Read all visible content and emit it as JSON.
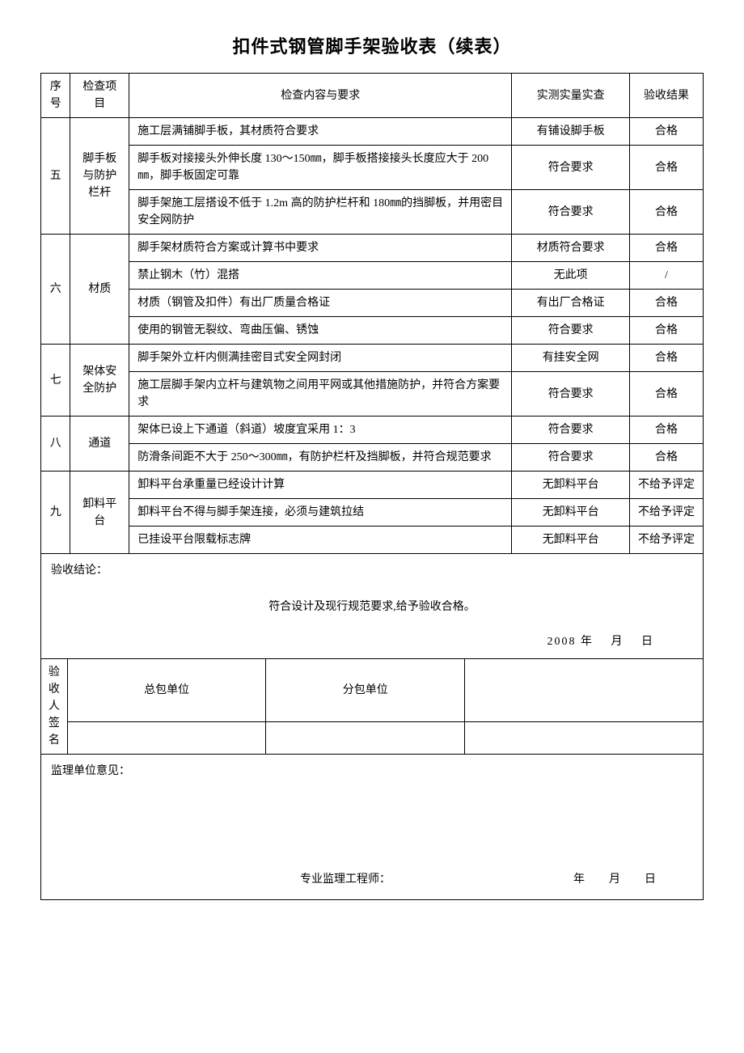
{
  "title": "扣件式钢管脚手架验收表（续表）",
  "headers": {
    "num": "序号",
    "category": "检查项目",
    "desc": "检查内容与要求",
    "check": "实测实量实查",
    "result": "验收结果"
  },
  "groups": [
    {
      "num": "五",
      "category": "脚手板与防护栏杆",
      "rows": [
        {
          "desc": "施工层满铺脚手板，其材质符合要求",
          "check": "有铺设脚手板",
          "result": "合格"
        },
        {
          "desc": "脚手板对接接头外伸长度 130～150㎜，脚手板搭接接头长度应大于 200㎜，脚手板固定可靠",
          "check": "符合要求",
          "result": "合格"
        },
        {
          "desc": "脚手架施工层搭设不低于 1.2m 高的防护栏杆和 180㎜的挡脚板，并用密目安全网防护",
          "check": "符合要求",
          "result": "合格"
        }
      ]
    },
    {
      "num": "六",
      "category": "材质",
      "rows": [
        {
          "desc": "脚手架材质符合方案或计算书中要求",
          "check": "材质符合要求",
          "result": "合格"
        },
        {
          "desc": "禁止钢木（竹）混搭",
          "check": "无此项",
          "result": "/"
        },
        {
          "desc": "材质（钢管及扣件）有出厂质量合格证",
          "check": "有出厂合格证",
          "result": "合格"
        },
        {
          "desc": "使用的钢管无裂纹、弯曲压偏、锈蚀",
          "check": "符合要求",
          "result": "合格"
        }
      ]
    },
    {
      "num": "七",
      "category": "架体安全防护",
      "rows": [
        {
          "desc": "脚手架外立杆内侧满挂密目式安全网封闭",
          "check": "有挂安全网",
          "result": "合格"
        },
        {
          "desc": "施工层脚手架内立杆与建筑物之间用平网或其他措施防护，并符合方案要求",
          "check": "符合要求",
          "result": "合格"
        }
      ]
    },
    {
      "num": "八",
      "category": "通道",
      "rows": [
        {
          "desc": "架体已设上下通道（斜道）坡度宜采用 1：3",
          "check": "符合要求",
          "result": "合格"
        },
        {
          "desc": "防滑条间距不大于 250～300㎜，有防护栏杆及挡脚板，并符合规范要求",
          "check": "符合要求",
          "result": "合格"
        }
      ]
    },
    {
      "num": "九",
      "category": "卸料平台",
      "rows": [
        {
          "desc": "卸料平台承重量已经设计计算",
          "check": "无卸料平台",
          "result": "不给予评定"
        },
        {
          "desc": "卸料平台不得与脚手架连接，必须与建筑拉结",
          "check": "无卸料平台",
          "result": "不给予评定"
        },
        {
          "desc": "已挂设平台限载标志牌",
          "check": "无卸料平台",
          "result": "不给予评定"
        }
      ]
    }
  ],
  "conclusion": {
    "label": "验收结论：",
    "body": "符合设计及现行规范要求,给予验收合格。",
    "date": "2008 年　 月　 日"
  },
  "sign": {
    "label": "验收人签名",
    "col1": "总包单位",
    "col2": "分包单位"
  },
  "opinion": {
    "label": "监理单位意见：",
    "engineer": "专业监理工程师：",
    "date": "年　月　日"
  }
}
